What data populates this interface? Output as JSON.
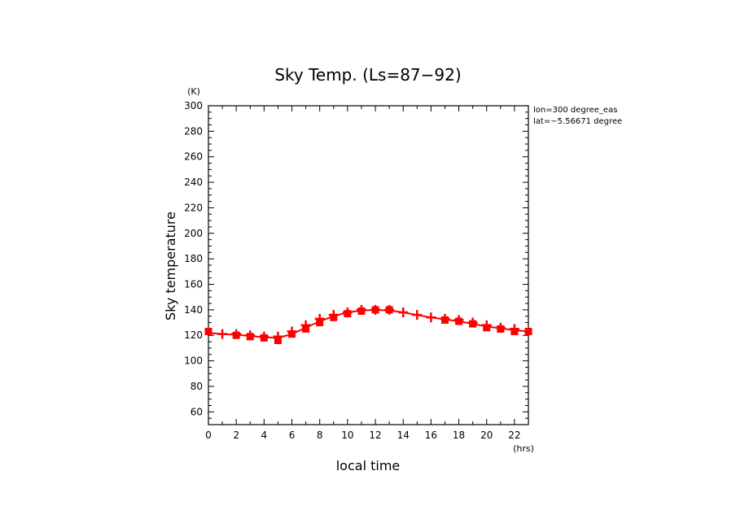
{
  "chart_data": {
    "type": "line",
    "title": "Sky Temp. (Ls=87−92)",
    "xlabel": "local time",
    "ylabel": "Sky temperature",
    "x_unit": "(hrs)",
    "y_unit": "(K)",
    "xlim": [
      0,
      23
    ],
    "ylim": [
      50,
      300
    ],
    "x_ticks": [
      0,
      2,
      4,
      6,
      8,
      10,
      12,
      14,
      16,
      18,
      20,
      22
    ],
    "y_ticks": [
      60,
      80,
      100,
      120,
      140,
      160,
      180,
      200,
      220,
      240,
      260,
      280,
      300
    ],
    "annotations": [
      "lon=300 degree_eas",
      "lat=−5.56671 degree"
    ],
    "line_color": "#ff0000",
    "series": [
      {
        "x": [
          0,
          1,
          2,
          3,
          4,
          5,
          6,
          7,
          8,
          9,
          10,
          11,
          12,
          13,
          14,
          15,
          16,
          17,
          18,
          19,
          20,
          21,
          22,
          23
        ],
        "values": [
          122,
          121,
          120.5,
          119.5,
          118.5,
          118,
          121,
          126,
          131,
          135,
          138,
          139.5,
          140,
          139.5,
          138,
          136,
          134,
          132.5,
          131,
          129,
          127,
          125.5,
          124,
          123
        ]
      }
    ],
    "markers": [
      {
        "x": 0,
        "y": 123,
        "shape": "square"
      },
      {
        "x": 1,
        "y": 121,
        "shape": "plus"
      },
      {
        "x": 2,
        "y": 120,
        "shape": "square"
      },
      {
        "x": 2,
        "y": 121,
        "shape": "plus"
      },
      {
        "x": 3,
        "y": 119,
        "shape": "square"
      },
      {
        "x": 3,
        "y": 120,
        "shape": "plus"
      },
      {
        "x": 4,
        "y": 118,
        "shape": "square"
      },
      {
        "x": 4,
        "y": 119,
        "shape": "plus"
      },
      {
        "x": 5,
        "y": 116,
        "shape": "square"
      },
      {
        "x": 5,
        "y": 119,
        "shape": "plus"
      },
      {
        "x": 6,
        "y": 121,
        "shape": "square"
      },
      {
        "x": 6,
        "y": 123,
        "shape": "plus"
      },
      {
        "x": 7,
        "y": 125,
        "shape": "square"
      },
      {
        "x": 7,
        "y": 128,
        "shape": "plus"
      },
      {
        "x": 8,
        "y": 130,
        "shape": "square"
      },
      {
        "x": 8,
        "y": 133,
        "shape": "plus"
      },
      {
        "x": 9,
        "y": 134,
        "shape": "square"
      },
      {
        "x": 9,
        "y": 136,
        "shape": "plus"
      },
      {
        "x": 10,
        "y": 137,
        "shape": "square"
      },
      {
        "x": 10,
        "y": 138,
        "shape": "plus"
      },
      {
        "x": 11,
        "y": 139,
        "shape": "square"
      },
      {
        "x": 11,
        "y": 140,
        "shape": "plus"
      },
      {
        "x": 12,
        "y": 140,
        "shape": "square"
      },
      {
        "x": 12,
        "y": 140,
        "shape": "plus"
      },
      {
        "x": 13,
        "y": 140,
        "shape": "square"
      },
      {
        "x": 13,
        "y": 140,
        "shape": "plus"
      },
      {
        "x": 14,
        "y": 138,
        "shape": "plus"
      },
      {
        "x": 15,
        "y": 136,
        "shape": "plus"
      },
      {
        "x": 16,
        "y": 134,
        "shape": "plus"
      },
      {
        "x": 17,
        "y": 132,
        "shape": "square"
      },
      {
        "x": 17,
        "y": 133,
        "shape": "plus"
      },
      {
        "x": 18,
        "y": 131,
        "shape": "square"
      },
      {
        "x": 18,
        "y": 132,
        "shape": "plus"
      },
      {
        "x": 19,
        "y": 129,
        "shape": "square"
      },
      {
        "x": 19,
        "y": 130,
        "shape": "plus"
      },
      {
        "x": 20,
        "y": 126,
        "shape": "square"
      },
      {
        "x": 20,
        "y": 128,
        "shape": "plus"
      },
      {
        "x": 21,
        "y": 125,
        "shape": "square"
      },
      {
        "x": 21,
        "y": 126,
        "shape": "plus"
      },
      {
        "x": 22,
        "y": 123,
        "shape": "square"
      },
      {
        "x": 22,
        "y": 125,
        "shape": "plus"
      },
      {
        "x": 23,
        "y": 123,
        "shape": "square"
      }
    ]
  }
}
